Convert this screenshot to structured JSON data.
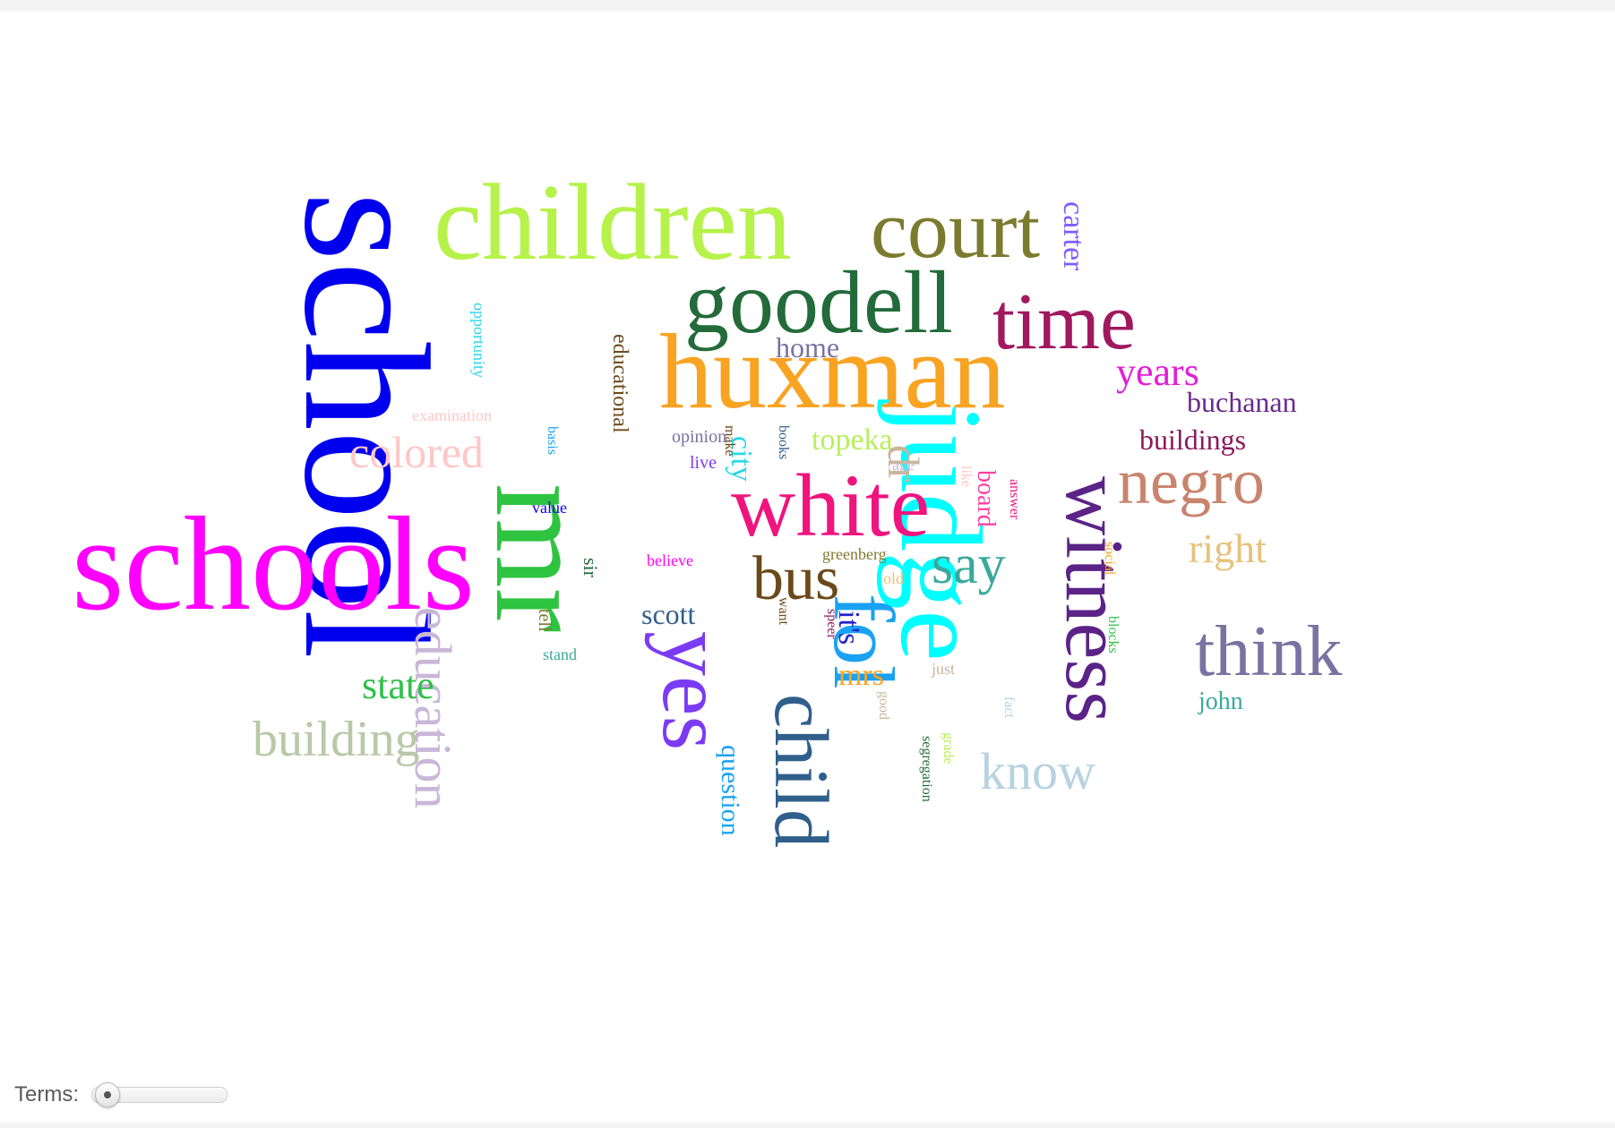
{
  "terms_control": {
    "label": "Terms:",
    "value": 0
  },
  "words": [
    {
      "text": "school",
      "color": "#0000ee"
    },
    {
      "text": "schools",
      "color": "#ff00ff"
    },
    {
      "text": "children",
      "color": "#b6f24a"
    },
    {
      "text": "huxman",
      "color": "#f9a323"
    },
    {
      "text": "mr",
      "color": "#2ec440"
    },
    {
      "text": "judge",
      "color": "#00ffff"
    },
    {
      "text": "goodell",
      "color": "#236b3a"
    },
    {
      "text": "court",
      "color": "#7c7a2e"
    },
    {
      "text": "time",
      "color": "#a0195e"
    },
    {
      "text": "white",
      "color": "#f0147f"
    },
    {
      "text": "yes",
      "color": "#7b3bf5"
    },
    {
      "text": "fol",
      "color": "#1aa2f2"
    },
    {
      "text": "child",
      "color": "#305f8c"
    },
    {
      "text": "witness",
      "color": "#5b2387"
    },
    {
      "text": "think",
      "color": "#7a72a0"
    },
    {
      "text": "negro",
      "color": "#c9846e"
    },
    {
      "text": "education",
      "color": "#c9b7d8"
    },
    {
      "text": "bus",
      "color": "#6a4a1a"
    },
    {
      "text": "say",
      "color": "#3aa99c"
    },
    {
      "text": "building",
      "color": "#b8c8a8"
    },
    {
      "text": "colored",
      "color": "#ffc7c7"
    },
    {
      "text": "know",
      "color": "#b7d3e0"
    },
    {
      "text": "carter",
      "color": "#7d5cff"
    },
    {
      "text": "years",
      "color": "#e21fd5"
    },
    {
      "text": "state",
      "color": "#30c04a"
    },
    {
      "text": "right",
      "color": "#e7c27a"
    },
    {
      "text": "buchanan",
      "color": "#6a2a8c"
    },
    {
      "text": "buildings",
      "color": "#8b1a5f"
    },
    {
      "text": "topeka",
      "color": "#b7f05a"
    },
    {
      "text": "home",
      "color": "#7a72a0"
    },
    {
      "text": "dr",
      "color": "#c9b59a"
    },
    {
      "text": "city",
      "color": "#28d7e8"
    },
    {
      "text": "board",
      "color": "#ff3fa3"
    },
    {
      "text": "scott",
      "color": "#305f8c"
    },
    {
      "text": "mrs",
      "color": "#f9a323"
    },
    {
      "text": "it's",
      "color": "#2222cc"
    },
    {
      "text": "question",
      "color": "#1aa2f2"
    },
    {
      "text": "john",
      "color": "#3aa99c"
    },
    {
      "text": "educational",
      "color": "#6a4a1a"
    },
    {
      "text": "opportunity",
      "color": "#28d7e8"
    },
    {
      "text": "examination",
      "color": "#ffc7c7"
    },
    {
      "text": "opinion",
      "color": "#7a72a0"
    },
    {
      "text": "live",
      "color": "#7b3bf5"
    },
    {
      "text": "make",
      "color": "#6a4a1a"
    },
    {
      "text": "books",
      "color": "#305f8c"
    },
    {
      "text": "age",
      "color": "#c9b7d8"
    },
    {
      "text": "like",
      "color": "#ffc7c7"
    },
    {
      "text": "answer",
      "color": "#f0147f"
    },
    {
      "text": "basis",
      "color": "#1aa2f2"
    },
    {
      "text": "value",
      "color": "#0000ee"
    },
    {
      "text": "believe",
      "color": "#ff00ff"
    },
    {
      "text": "sir",
      "color": "#236b3a"
    },
    {
      "text": "tell",
      "color": "#7c7a2e"
    },
    {
      "text": "stand",
      "color": "#3aa99c"
    },
    {
      "text": "greenberg",
      "color": "#7c7a2e"
    },
    {
      "text": "old",
      "color": "#e7c27a"
    },
    {
      "text": "want",
      "color": "#6a4a1a"
    },
    {
      "text": "speer",
      "color": "#8b1a5f"
    },
    {
      "text": "just",
      "color": "#c9b59a"
    },
    {
      "text": "good",
      "color": "#c9b59a"
    },
    {
      "text": "social",
      "color": "#f9a323"
    },
    {
      "text": "blocks",
      "color": "#30c04a"
    },
    {
      "text": "fact",
      "color": "#b7d3e0"
    },
    {
      "text": "grade",
      "color": "#b7f05a"
    },
    {
      "text": "segregation",
      "color": "#236b3a"
    }
  ]
}
